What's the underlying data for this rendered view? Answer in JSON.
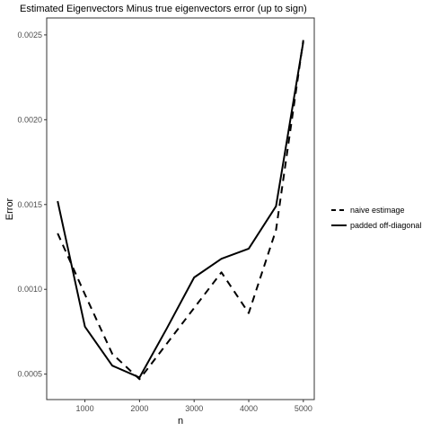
{
  "chart_data": {
    "type": "line",
    "title": "Estimated Eigenvectors Minus true eigenvectors error (up to sign)",
    "xlabel": "n",
    "ylabel": "Error",
    "xlim": [
      300,
      5200
    ],
    "ylim": [
      0.00035,
      0.0026
    ],
    "x_ticks": [
      1000,
      2000,
      3000,
      4000,
      5000
    ],
    "y_ticks": [
      0.0005,
      0.001,
      0.0015,
      0.002,
      0.0025
    ],
    "x_tick_labels": [
      "1000",
      "2000",
      "3000",
      "4000",
      "5000"
    ],
    "y_tick_labels": [
      "0.0005",
      "0.0010",
      "0.0015",
      "0.0020",
      "0.0025"
    ],
    "grid": false,
    "legend_position": "right",
    "x": [
      500,
      1000,
      1500,
      2000,
      2500,
      3000,
      3500,
      4000,
      4500,
      5000
    ],
    "series": [
      {
        "name": "naive estimage",
        "style": "dashed",
        "color": "#000000",
        "values": [
          0.00133,
          0.00097,
          0.00062,
          0.00047,
          0.00068,
          0.00089,
          0.0011,
          0.00086,
          0.00135,
          0.00247
        ]
      },
      {
        "name": "padded off-diagonal",
        "style": "solid",
        "color": "#000000",
        "values": [
          0.00152,
          0.00078,
          0.00055,
          0.00048,
          0.00077,
          0.00107,
          0.00118,
          0.00124,
          0.00149,
          0.00246
        ]
      }
    ]
  }
}
